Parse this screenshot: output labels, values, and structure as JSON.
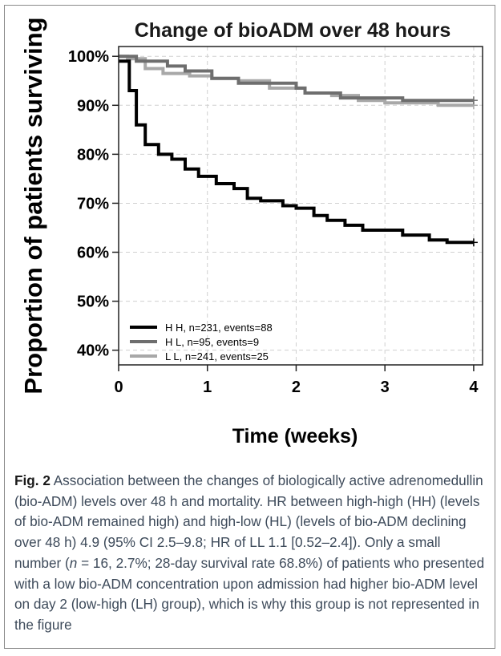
{
  "chart_data": {
    "type": "line",
    "subtype": "kaplan-meier step survival curve",
    "title": "Change of bioADM over 48 hours",
    "xlabel": "Time (weeks)",
    "ylabel": "Proportion of patients surviving",
    "xlim": [
      0,
      4.1
    ],
    "ylim": [
      0.37,
      1.02
    ],
    "xticks": [
      0,
      1,
      2,
      3,
      4
    ],
    "xtick_labels": [
      "0",
      "1",
      "2",
      "3",
      "4"
    ],
    "yticks": [
      0.4,
      0.5,
      0.6,
      0.7,
      0.8,
      0.9,
      1.0
    ],
    "ytick_labels": [
      "40%",
      "50%",
      "60%",
      "70%",
      "80%",
      "90%",
      "100%"
    ],
    "grid": true,
    "legend_position": "bottom-left",
    "series": [
      {
        "name": "H H, n=231, events=88",
        "color": "#000000",
        "line_width": 4,
        "points": [
          [
            0,
            0.99
          ],
          [
            0.12,
            0.99
          ],
          [
            0.12,
            0.93
          ],
          [
            0.2,
            0.93
          ],
          [
            0.2,
            0.86
          ],
          [
            0.3,
            0.86
          ],
          [
            0.3,
            0.82
          ],
          [
            0.45,
            0.82
          ],
          [
            0.45,
            0.8
          ],
          [
            0.6,
            0.8
          ],
          [
            0.6,
            0.79
          ],
          [
            0.75,
            0.79
          ],
          [
            0.75,
            0.77
          ],
          [
            0.9,
            0.77
          ],
          [
            0.9,
            0.755
          ],
          [
            1.1,
            0.755
          ],
          [
            1.1,
            0.74
          ],
          [
            1.3,
            0.74
          ],
          [
            1.3,
            0.73
          ],
          [
            1.45,
            0.73
          ],
          [
            1.45,
            0.71
          ],
          [
            1.6,
            0.71
          ],
          [
            1.6,
            0.705
          ],
          [
            1.85,
            0.705
          ],
          [
            1.85,
            0.695
          ],
          [
            2.0,
            0.695
          ],
          [
            2.0,
            0.69
          ],
          [
            2.2,
            0.69
          ],
          [
            2.2,
            0.675
          ],
          [
            2.35,
            0.675
          ],
          [
            2.35,
            0.665
          ],
          [
            2.55,
            0.665
          ],
          [
            2.55,
            0.655
          ],
          [
            2.75,
            0.655
          ],
          [
            2.75,
            0.645
          ],
          [
            3.2,
            0.645
          ],
          [
            3.2,
            0.635
          ],
          [
            3.5,
            0.635
          ],
          [
            3.5,
            0.625
          ],
          [
            3.7,
            0.625
          ],
          [
            3.7,
            0.62
          ],
          [
            4.0,
            0.62
          ]
        ]
      },
      {
        "name": "H L, n=95, events=9",
        "color": "#6e6e6e",
        "line_width": 4,
        "points": [
          [
            0,
            1.0
          ],
          [
            0.2,
            1.0
          ],
          [
            0.2,
            0.99
          ],
          [
            0.55,
            0.99
          ],
          [
            0.55,
            0.98
          ],
          [
            0.75,
            0.98
          ],
          [
            0.75,
            0.97
          ],
          [
            1.05,
            0.97
          ],
          [
            1.05,
            0.955
          ],
          [
            1.35,
            0.955
          ],
          [
            1.35,
            0.945
          ],
          [
            2.0,
            0.945
          ],
          [
            2.0,
            0.935
          ],
          [
            2.1,
            0.935
          ],
          [
            2.1,
            0.925
          ],
          [
            2.5,
            0.925
          ],
          [
            2.5,
            0.915
          ],
          [
            3.2,
            0.915
          ],
          [
            3.2,
            0.91
          ],
          [
            4.0,
            0.91
          ]
        ]
      },
      {
        "name": "L L, n=241, events=25",
        "color": "#a8a8a8",
        "line_width": 4,
        "points": [
          [
            0,
            1.0
          ],
          [
            0.1,
            1.0
          ],
          [
            0.1,
            0.995
          ],
          [
            0.3,
            0.995
          ],
          [
            0.3,
            0.975
          ],
          [
            0.5,
            0.975
          ],
          [
            0.5,
            0.965
          ],
          [
            0.8,
            0.965
          ],
          [
            0.8,
            0.96
          ],
          [
            1.05,
            0.96
          ],
          [
            1.05,
            0.955
          ],
          [
            1.35,
            0.955
          ],
          [
            1.35,
            0.95
          ],
          [
            1.7,
            0.95
          ],
          [
            1.7,
            0.935
          ],
          [
            2.1,
            0.935
          ],
          [
            2.1,
            0.925
          ],
          [
            2.4,
            0.925
          ],
          [
            2.4,
            0.92
          ],
          [
            2.7,
            0.92
          ],
          [
            2.7,
            0.91
          ],
          [
            3.0,
            0.91
          ],
          [
            3.0,
            0.905
          ],
          [
            3.6,
            0.905
          ],
          [
            3.6,
            0.9
          ],
          [
            4.0,
            0.9
          ]
        ]
      }
    ]
  },
  "caption": {
    "label": "Fig. 2",
    "text_1": " Association between the changes of biologically active adrenomedullin (bio-ADM) levels over 48 h and mortality. HR between high-high (HH) (levels of bio-ADM remained high) and high-low (HL) (levels of bio-ADM declining over 48 h) 4.9 (95% CI 2.5–9.8; HR of LL 1.1 [0.52–2.4]). Only a small number (",
    "n_italic": "n",
    "text_2": " = 16, 2.7%; 28-day survival rate 68.8%) of patients who presented with a low bio-ADM concentration upon admission had higher bio-ADM level on day 2 (low-high (LH) group), which is why this group is not represented in the figure"
  }
}
